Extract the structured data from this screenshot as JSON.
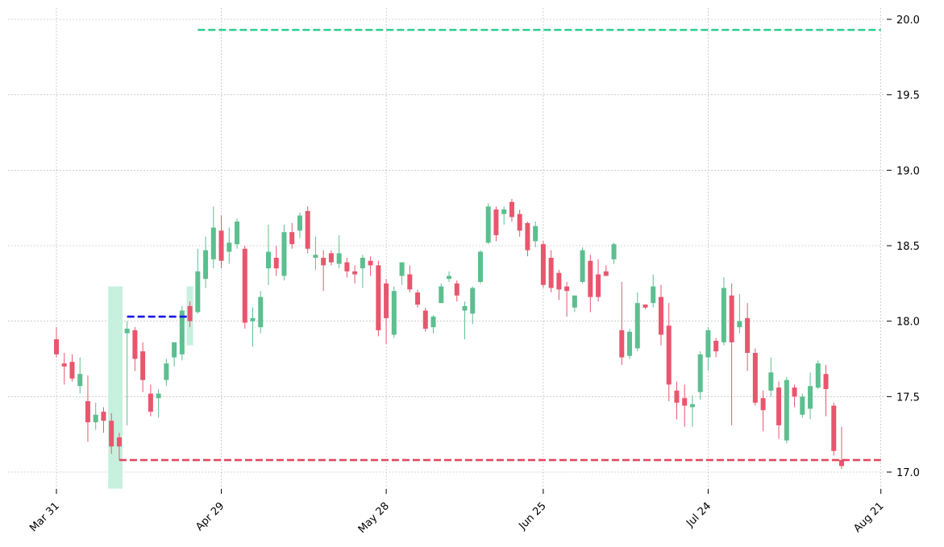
{
  "chart_data": {
    "type": "candlestick",
    "title": "",
    "xlabel": "",
    "ylabel": "",
    "ylim": [
      16.88,
      20.05
    ],
    "grid": true,
    "x_ticks": [
      "Mar 31",
      "Apr 29",
      "May 28",
      "Jun 25",
      "Jul 24",
      "Aug 21"
    ],
    "y_ticks": [
      "17.0",
      "17.5",
      "18.0",
      "18.5",
      "19.0",
      "19.5",
      "20.0"
    ],
    "candles": [
      {
        "date": "Mar 31",
        "open": 17.88,
        "high": 17.96,
        "low": 17.76,
        "close": 17.78
      },
      {
        "date": "Apr 1",
        "open": 17.72,
        "high": 17.79,
        "low": 17.58,
        "close": 17.7
      },
      {
        "date": "Apr 2",
        "open": 17.73,
        "high": 17.78,
        "low": 17.6,
        "close": 17.62
      },
      {
        "date": "Apr 3",
        "open": 17.57,
        "high": 17.76,
        "low": 17.52,
        "close": 17.65
      },
      {
        "date": "Apr 4",
        "open": 17.47,
        "high": 17.64,
        "low": 17.2,
        "close": 17.33
      },
      {
        "date": "Apr 7",
        "open": 17.33,
        "high": 17.46,
        "low": 17.28,
        "close": 17.38
      },
      {
        "date": "Apr 8",
        "open": 17.4,
        "high": 17.43,
        "low": 17.26,
        "close": 17.34
      },
      {
        "date": "Apr 9",
        "open": 17.34,
        "high": 17.39,
        "low": 17.12,
        "close": 17.17
      },
      {
        "date": "Apr 10",
        "open": 17.23,
        "high": 17.26,
        "low": 17.08,
        "close": 17.17
      },
      {
        "date": "Apr 11",
        "open": 17.92,
        "high": 18.0,
        "low": 17.31,
        "close": 17.95
      },
      {
        "date": "Apr 14",
        "open": 17.94,
        "high": 17.96,
        "low": 17.67,
        "close": 17.75
      },
      {
        "date": "Apr 15",
        "open": 17.8,
        "high": 17.86,
        "low": 17.53,
        "close": 17.61
      },
      {
        "date": "Apr 16",
        "open": 17.52,
        "high": 17.58,
        "low": 17.37,
        "close": 17.4
      },
      {
        "date": "Apr 17",
        "open": 17.49,
        "high": 17.55,
        "low": 17.36,
        "close": 17.52
      },
      {
        "date": "Apr 18",
        "open": 17.61,
        "high": 17.75,
        "low": 17.57,
        "close": 17.72
      },
      {
        "date": "Apr 21",
        "open": 17.76,
        "high": 17.86,
        "low": 17.7,
        "close": 17.86
      },
      {
        "date": "Apr 22",
        "open": 17.78,
        "high": 18.1,
        "low": 17.74,
        "close": 18.07
      },
      {
        "date": "Apr 23",
        "open": 18.1,
        "high": 18.13,
        "low": 17.96,
        "close": 18.0
      },
      {
        "date": "Apr 24",
        "open": 18.06,
        "high": 18.48,
        "low": 18.05,
        "close": 18.33
      },
      {
        "date": "Apr 25",
        "open": 18.28,
        "high": 18.56,
        "low": 18.22,
        "close": 18.47
      },
      {
        "date": "Apr 28",
        "open": 18.41,
        "high": 18.76,
        "low": 18.35,
        "close": 18.62
      },
      {
        "date": "Apr 29",
        "open": 18.6,
        "high": 18.7,
        "low": 18.35,
        "close": 18.4
      },
      {
        "date": "Apr 30",
        "open": 18.46,
        "high": 18.62,
        "low": 18.38,
        "close": 18.52
      },
      {
        "date": "May 1",
        "open": 18.51,
        "high": 18.68,
        "low": 18.48,
        "close": 18.66
      },
      {
        "date": "May 2",
        "open": 18.48,
        "high": 18.5,
        "low": 17.95,
        "close": 17.99
      },
      {
        "date": "May 5",
        "open": 18.0,
        "high": 18.09,
        "low": 17.83,
        "close": 18.02
      },
      {
        "date": "May 6",
        "open": 17.96,
        "high": 18.2,
        "low": 17.92,
        "close": 18.16
      },
      {
        "date": "May 7",
        "open": 18.35,
        "high": 18.64,
        "low": 18.24,
        "close": 18.46
      },
      {
        "date": "May 8",
        "open": 18.42,
        "high": 18.5,
        "low": 18.3,
        "close": 18.35
      },
      {
        "date": "May 9",
        "open": 18.3,
        "high": 18.64,
        "low": 18.27,
        "close": 18.59
      },
      {
        "date": "May 12",
        "open": 18.59,
        "high": 18.65,
        "low": 18.48,
        "close": 18.51
      },
      {
        "date": "May 13",
        "open": 18.6,
        "high": 18.72,
        "low": 18.55,
        "close": 18.7
      },
      {
        "date": "May 14",
        "open": 18.73,
        "high": 18.76,
        "low": 18.45,
        "close": 18.48
      },
      {
        "date": "May 15",
        "open": 18.42,
        "high": 18.56,
        "low": 18.34,
        "close": 18.44
      },
      {
        "date": "May 16",
        "open": 18.42,
        "high": 18.47,
        "low": 18.2,
        "close": 18.37
      },
      {
        "date": "May 19",
        "open": 18.45,
        "high": 18.47,
        "low": 18.37,
        "close": 18.39
      },
      {
        "date": "May 20",
        "open": 18.38,
        "high": 18.57,
        "low": 18.35,
        "close": 18.45
      },
      {
        "date": "May 21",
        "open": 18.39,
        "high": 18.42,
        "low": 18.29,
        "close": 18.33
      },
      {
        "date": "May 22",
        "open": 18.33,
        "high": 18.37,
        "low": 18.25,
        "close": 18.31
      },
      {
        "date": "May 23",
        "open": 18.35,
        "high": 18.44,
        "low": 18.22,
        "close": 18.42
      },
      {
        "date": "May 26",
        "open": 18.4,
        "high": 18.43,
        "low": 18.3,
        "close": 18.37
      },
      {
        "date": "May 27",
        "open": 18.37,
        "high": 18.4,
        "low": 17.9,
        "close": 17.94
      },
      {
        "date": "May 28",
        "open": 18.25,
        "high": 18.28,
        "low": 17.85,
        "close": 18.02
      },
      {
        "date": "May 29",
        "open": 17.91,
        "high": 18.23,
        "low": 17.89,
        "close": 18.2
      },
      {
        "date": "May 30",
        "open": 18.3,
        "high": 18.39,
        "low": 18.24,
        "close": 18.39
      },
      {
        "date": "Jun 2",
        "open": 18.31,
        "high": 18.37,
        "low": 18.19,
        "close": 18.21
      },
      {
        "date": "Jun 3",
        "open": 18.19,
        "high": 18.21,
        "low": 18.09,
        "close": 18.11
      },
      {
        "date": "Jun 4",
        "open": 18.07,
        "high": 18.09,
        "low": 17.93,
        "close": 17.95
      },
      {
        "date": "Jun 5",
        "open": 17.96,
        "high": 18.04,
        "low": 17.92,
        "close": 18.03
      },
      {
        "date": "Jun 6",
        "open": 18.12,
        "high": 18.25,
        "low": 18.12,
        "close": 18.23
      },
      {
        "date": "Jun 9",
        "open": 18.28,
        "high": 18.33,
        "low": 18.26,
        "close": 18.3
      },
      {
        "date": "Jun 10",
        "open": 18.25,
        "high": 18.27,
        "low": 18.13,
        "close": 18.17
      },
      {
        "date": "Jun 11",
        "open": 18.07,
        "high": 18.13,
        "low": 17.88,
        "close": 18.1
      },
      {
        "date": "Jun 12",
        "open": 18.05,
        "high": 18.23,
        "low": 17.98,
        "close": 18.22
      },
      {
        "date": "Jun 13",
        "open": 18.26,
        "high": 18.47,
        "low": 18.25,
        "close": 18.46
      },
      {
        "date": "Jun 16",
        "open": 18.52,
        "high": 18.78,
        "low": 18.51,
        "close": 18.76
      },
      {
        "date": "Jun 17",
        "open": 18.74,
        "high": 18.76,
        "low": 18.53,
        "close": 18.57
      },
      {
        "date": "Jun 18",
        "open": 18.71,
        "high": 18.76,
        "low": 18.64,
        "close": 18.74
      },
      {
        "date": "Jun 19",
        "open": 18.79,
        "high": 18.81,
        "low": 18.66,
        "close": 18.69
      },
      {
        "date": "Jun 20",
        "open": 18.71,
        "high": 18.74,
        "low": 18.56,
        "close": 18.6
      },
      {
        "date": "Jun 23",
        "open": 18.65,
        "high": 18.66,
        "low": 18.43,
        "close": 18.47
      },
      {
        "date": "Jun 24",
        "open": 18.53,
        "high": 18.66,
        "low": 18.49,
        "close": 18.63
      },
      {
        "date": "Jun 25",
        "open": 18.51,
        "high": 18.53,
        "low": 18.22,
        "close": 18.24
      },
      {
        "date": "Jun 26",
        "open": 18.42,
        "high": 18.47,
        "low": 18.19,
        "close": 18.22
      },
      {
        "date": "Jun 27",
        "open": 18.32,
        "high": 18.34,
        "low": 18.14,
        "close": 18.21
      },
      {
        "date": "Jun 30",
        "open": 18.23,
        "high": 18.26,
        "low": 18.03,
        "close": 18.2
      },
      {
        "date": "Jul 1",
        "open": 18.09,
        "high": 18.17,
        "low": 18.06,
        "close": 18.17
      },
      {
        "date": "Jul 2",
        "open": 18.26,
        "high": 18.49,
        "low": 18.25,
        "close": 18.47
      },
      {
        "date": "Jul 3",
        "open": 18.4,
        "high": 18.44,
        "low": 18.06,
        "close": 18.16
      },
      {
        "date": "Jul 4",
        "open": 18.31,
        "high": 18.41,
        "low": 18.13,
        "close": 18.16
      },
      {
        "date": "Jul 7",
        "open": 18.33,
        "high": 18.37,
        "low": 18.3,
        "close": 18.3
      },
      {
        "date": "Jul 8",
        "open": 18.41,
        "high": 18.52,
        "low": 18.38,
        "close": 18.51
      },
      {
        "date": "Jul 9",
        "open": 17.94,
        "high": 18.26,
        "low": 17.71,
        "close": 17.76
      },
      {
        "date": "Jul 10",
        "open": 17.77,
        "high": 17.95,
        "low": 17.75,
        "close": 17.93
      },
      {
        "date": "Jul 11",
        "open": 17.82,
        "high": 18.19,
        "low": 17.8,
        "close": 18.12
      },
      {
        "date": "Jul 14",
        "open": 18.11,
        "high": 18.11,
        "low": 18.08,
        "close": 18.09
      },
      {
        "date": "Jul 15",
        "open": 18.12,
        "high": 18.31,
        "low": 18.09,
        "close": 18.23
      },
      {
        "date": "Jul 16",
        "open": 18.16,
        "high": 18.24,
        "low": 17.84,
        "close": 17.91
      },
      {
        "date": "Jul 17",
        "open": 17.97,
        "high": 18.12,
        "low": 17.47,
        "close": 17.58
      },
      {
        "date": "Jul 18",
        "open": 17.54,
        "high": 17.6,
        "low": 17.35,
        "close": 17.46
      },
      {
        "date": "Jul 21",
        "open": 17.49,
        "high": 17.58,
        "low": 17.3,
        "close": 17.44
      },
      {
        "date": "Jul 22",
        "open": 17.43,
        "high": 17.51,
        "low": 17.3,
        "close": 17.45
      },
      {
        "date": "Jul 23",
        "open": 17.53,
        "high": 17.8,
        "low": 17.48,
        "close": 17.78
      },
      {
        "date": "Jul 24",
        "open": 17.76,
        "high": 17.96,
        "low": 17.67,
        "close": 17.94
      },
      {
        "date": "Jul 25",
        "open": 17.87,
        "high": 17.89,
        "low": 17.76,
        "close": 17.8
      },
      {
        "date": "Jul 28",
        "open": 17.86,
        "high": 18.29,
        "low": 17.84,
        "close": 18.22
      },
      {
        "date": "Jul 29",
        "open": 18.17,
        "high": 18.25,
        "low": 17.31,
        "close": 17.86
      },
      {
        "date": "Jul 30",
        "open": 17.96,
        "high": 18.18,
        "low": 17.92,
        "close": 18.0
      },
      {
        "date": "Jul 31",
        "open": 18.02,
        "high": 18.12,
        "low": 17.67,
        "close": 17.79
      },
      {
        "date": "Aug 1",
        "open": 17.79,
        "high": 17.82,
        "low": 17.44,
        "close": 17.46
      },
      {
        "date": "Aug 4",
        "open": 17.49,
        "high": 17.54,
        "low": 17.27,
        "close": 17.41
      },
      {
        "date": "Aug 5",
        "open": 17.54,
        "high": 17.76,
        "low": 17.5,
        "close": 17.66
      },
      {
        "date": "Aug 6",
        "open": 17.56,
        "high": 17.6,
        "low": 17.22,
        "close": 17.31
      },
      {
        "date": "Aug 7",
        "open": 17.21,
        "high": 17.63,
        "low": 17.19,
        "close": 17.61
      },
      {
        "date": "Aug 8",
        "open": 17.56,
        "high": 17.58,
        "low": 17.43,
        "close": 17.5
      },
      {
        "date": "Aug 11",
        "open": 17.38,
        "high": 17.52,
        "low": 17.36,
        "close": 17.5
      },
      {
        "date": "Aug 12",
        "open": 17.42,
        "high": 17.66,
        "low": 17.35,
        "close": 17.57
      },
      {
        "date": "Aug 13",
        "open": 17.56,
        "high": 17.74,
        "low": 17.55,
        "close": 17.72
      },
      {
        "date": "Aug 14",
        "open": 17.65,
        "high": 17.71,
        "low": 17.37,
        "close": 17.55
      },
      {
        "date": "Aug 15",
        "open": 17.44,
        "high": 17.46,
        "low": 17.11,
        "close": 17.14
      },
      {
        "date": "Aug 18",
        "open": 17.08,
        "high": 17.3,
        "low": 17.02,
        "close": 17.04
      }
    ],
    "annotations": {
      "highlight_zones": [
        {
          "from": "Apr 9",
          "to": "Apr 10",
          "y_low": 16.89,
          "y_high": 18.23
        },
        {
          "from": "Apr 23",
          "to": "Apr 23",
          "y_low": 17.84,
          "y_high": 18.23
        }
      ],
      "levels": [
        {
          "value": 19.93,
          "from": "Apr 24",
          "to": "Aug 21",
          "color": "#2ecc8f",
          "style": "dashed"
        },
        {
          "value": 18.03,
          "from": "Apr 11",
          "to": "Apr 23",
          "color": "#1515e6",
          "style": "dashed"
        },
        {
          "value": 17.08,
          "from": "Apr 10",
          "to": "Aug 21",
          "color": "#e0485e",
          "style": "dashed"
        }
      ]
    },
    "colors": {
      "up": "#5cbf8f",
      "down": "#e8566e",
      "highlight": "#c7f0de",
      "grid": "#b0b0b0"
    }
  }
}
